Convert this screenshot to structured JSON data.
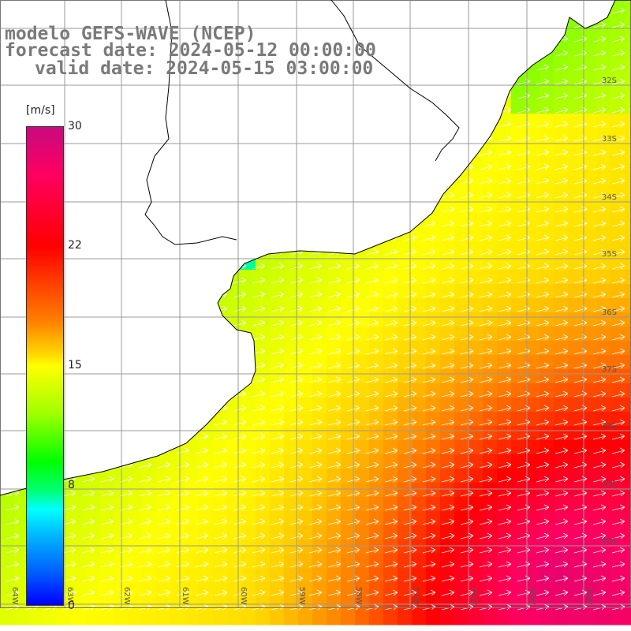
{
  "title": {
    "line1": "modelo GEFS-WAVE (NCEP)",
    "line2": "forecast date: 2024-05-12 00:00:00",
    "line3": "valid date: 2024-05-15 03:00:00"
  },
  "colorbar": {
    "unit": "[m/s]",
    "ticks": [
      "30",
      "22",
      "15",
      "8",
      "0"
    ],
    "min": 0,
    "max": 30,
    "colors": [
      "#0000ff",
      "#0060ff",
      "#00b0ff",
      "#00ffff",
      "#00ff70",
      "#00ff00",
      "#a0ff00",
      "#ffff00",
      "#ffd000",
      "#ff7a00",
      "#ff0000",
      "#ff0060",
      "#c80a80"
    ]
  },
  "grid": {
    "lat_labels": [
      "32S",
      "33S",
      "34S",
      "35S",
      "36S",
      "37S",
      "38S",
      "39S",
      "40S"
    ],
    "lon_labels": [
      "64W",
      "63W",
      "62W",
      "61W",
      "60W",
      "59W",
      "58W",
      "57W",
      "56W",
      "55W",
      "54W"
    ]
  },
  "map": {
    "land_color": "#ffffff",
    "coast_color": "#000000",
    "grid_color": "#9a9a9a",
    "arrow_color": "#ffffff",
    "variable": "wind speed",
    "arrow_direction": "from west-southwest toward east-northeast"
  }
}
